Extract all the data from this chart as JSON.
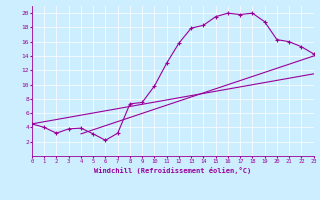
{
  "xlabel": "Windchill (Refroidissement éolien,°C)",
  "bg_color": "#cceeff",
  "line_color": "#990099",
  "xlim": [
    0,
    23
  ],
  "ylim": [
    0,
    21
  ],
  "xticks": [
    0,
    1,
    2,
    3,
    4,
    5,
    6,
    7,
    8,
    9,
    10,
    11,
    12,
    13,
    14,
    15,
    16,
    17,
    18,
    19,
    20,
    21,
    22,
    23
  ],
  "yticks": [
    2,
    4,
    6,
    8,
    10,
    12,
    14,
    16,
    18,
    20
  ],
  "curve1_x": [
    0,
    1,
    2,
    3,
    4,
    5,
    6,
    7,
    8,
    9,
    10,
    11,
    12,
    13,
    14,
    15,
    16,
    17,
    18,
    19,
    20,
    21,
    22,
    23
  ],
  "curve1_y": [
    4.5,
    4.0,
    3.2,
    3.8,
    3.9,
    3.1,
    2.2,
    3.2,
    7.3,
    7.5,
    9.8,
    13.0,
    15.8,
    17.9,
    18.3,
    19.5,
    20.0,
    19.8,
    20.0,
    18.8,
    16.3,
    16.0,
    15.3,
    14.3
  ],
  "line2_x": [
    0,
    23
  ],
  "line2_y": [
    4.5,
    11.5
  ],
  "line3_x": [
    4,
    23
  ],
  "line3_y": [
    3.1,
    14.0
  ],
  "marker": "+"
}
